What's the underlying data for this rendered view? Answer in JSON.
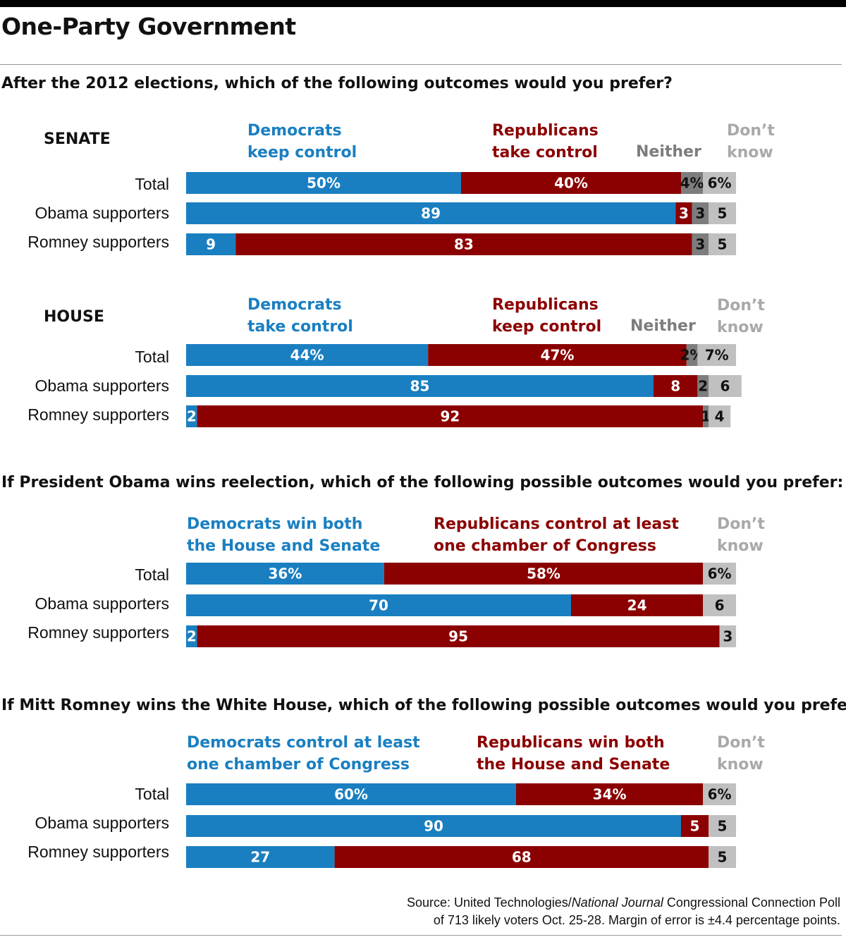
{
  "title": "One-Party Government",
  "source": {
    "line1_pre": "Source: United Technologies/",
    "line1_italic": "National Journal",
    "line1_post": " Congressional Connection Poll",
    "line2": "of 713 likely voters Oct. 25-28. Margin of error is ±4.4 percentage points."
  },
  "questions": [
    "After the 2012 elections, which of the following outcomes would you prefer?",
    "If President Obama wins reelection, which of the following possible outcomes would you prefer:",
    "If Mitt Romney wins the White House, which of the following possible outcomes would you prefer:"
  ],
  "colors": {
    "democrat": "#1a7fc1",
    "republican": "#8b0000",
    "neither": "#7d7d7d",
    "dont_know": "#c0c0c0",
    "dont_know_text": "#a9a9a9"
  },
  "chart_data": [
    {
      "type": "bar",
      "stacked": true,
      "orientation": "horizontal",
      "section_label": "SENATE",
      "categories": [
        "Total",
        "Obama supporters",
        "Romney supporters"
      ],
      "series": [
        {
          "name": "Democrats keep control",
          "values": [
            50,
            89,
            9
          ],
          "labels": [
            "50%",
            "89",
            "9"
          ]
        },
        {
          "name": "Republicans take control",
          "values": [
            40,
            3,
            83
          ],
          "labels": [
            "40%",
            "3",
            "83"
          ]
        },
        {
          "name": "Neither",
          "values": [
            4,
            3,
            3
          ],
          "labels": [
            "4%",
            "3",
            "3"
          ]
        },
        {
          "name": "Don’t know",
          "values": [
            6,
            5,
            5
          ],
          "labels": [
            "6%",
            "5",
            "5"
          ]
        }
      ]
    },
    {
      "type": "bar",
      "stacked": true,
      "orientation": "horizontal",
      "section_label": "HOUSE",
      "categories": [
        "Total",
        "Obama supporters",
        "Romney supporters"
      ],
      "series": [
        {
          "name": "Democrats take control",
          "values": [
            44,
            85,
            2
          ],
          "labels": [
            "44%",
            "85",
            "2"
          ]
        },
        {
          "name": "Republicans keep control",
          "values": [
            47,
            8,
            92
          ],
          "labels": [
            "47%",
            "8",
            "92"
          ]
        },
        {
          "name": "Neither",
          "values": [
            2,
            2,
            1
          ],
          "labels": [
            "2%",
            "2",
            "1"
          ]
        },
        {
          "name": "Don’t know",
          "values": [
            7,
            6,
            4
          ],
          "labels": [
            "7%",
            "6",
            "4"
          ]
        }
      ]
    },
    {
      "type": "bar",
      "stacked": true,
      "orientation": "horizontal",
      "section_label": "",
      "categories": [
        "Total",
        "Obama supporters",
        "Romney supporters"
      ],
      "series": [
        {
          "name": "Democrats win both the House and Senate",
          "values": [
            36,
            70,
            2
          ],
          "labels": [
            "36%",
            "70",
            "2"
          ]
        },
        {
          "name": "Republicans control at least one chamber of Congress",
          "values": [
            58,
            24,
            95
          ],
          "labels": [
            "58%",
            "24",
            "95"
          ]
        },
        {
          "name": "Don’t know",
          "values": [
            6,
            6,
            3
          ],
          "labels": [
            "6%",
            "6",
            "3"
          ]
        }
      ]
    },
    {
      "type": "bar",
      "stacked": true,
      "orientation": "horizontal",
      "section_label": "",
      "categories": [
        "Total",
        "Obama supporters",
        "Romney supporters"
      ],
      "series": [
        {
          "name": "Democrats control at least one chamber of Congress",
          "values": [
            60,
            90,
            27
          ],
          "labels": [
            "60%",
            "90",
            "27"
          ]
        },
        {
          "name": "Republicans win both the House and Senate",
          "values": [
            34,
            5,
            68
          ],
          "labels": [
            "34%",
            "5",
            "68"
          ]
        },
        {
          "name": "Don’t know",
          "values": [
            6,
            5,
            5
          ],
          "labels": [
            "6%",
            "5",
            "5"
          ]
        }
      ]
    }
  ],
  "legend_text": [
    [
      "Democrats\nkeep control",
      "Republicans\ntake control",
      "Neither",
      "Don’t\nknow"
    ],
    [
      "Democrats\ntake control",
      "Republicans\nkeep control",
      "Neither",
      "Don’t\nknow"
    ],
    [
      "Democrats win both\nthe House and Senate",
      "Republicans control at least\none chamber of Congress",
      "Don’t\nknow"
    ],
    [
      "Democrats control at least\none chamber of Congress",
      "Republicans win both\nthe House and Senate",
      "Don’t\nknow"
    ]
  ]
}
